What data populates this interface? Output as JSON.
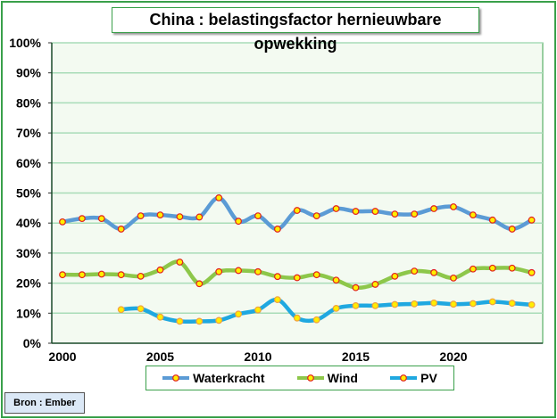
{
  "chart_data": {
    "type": "line",
    "title": "China : belastingsfactor hernieuwbare opwekking",
    "xlabel": "",
    "ylabel": "",
    "xlim": [
      2000,
      2024
    ],
    "ylim": [
      0,
      100
    ],
    "x_ticks": [
      "2000",
      "2005",
      "2010",
      "2015",
      "2020"
    ],
    "y_ticks": [
      "0%",
      "10%",
      "20%",
      "30%",
      "40%",
      "50%",
      "60%",
      "70%",
      "80%",
      "90%",
      "100%"
    ],
    "x": [
      2000,
      2001,
      2002,
      2003,
      2004,
      2005,
      2006,
      2007,
      2008,
      2009,
      2010,
      2011,
      2012,
      2013,
      2014,
      2015,
      2016,
      2017,
      2018,
      2019,
      2020,
      2021,
      2022,
      2023,
      2024
    ],
    "series": [
      {
        "name": "Waterkracht",
        "color": "#5b9bd5",
        "values": [
          40.4,
          41.5,
          41.5,
          38,
          42.4,
          42.7,
          42.1,
          42,
          48.4,
          40.6,
          42.4,
          38,
          44.2,
          42.4,
          44.8,
          43.9,
          43.9,
          43,
          43,
          44.8,
          45.4,
          42.7,
          41,
          38,
          41
        ]
      },
      {
        "name": "Wind",
        "color": "#8dc74a",
        "values": [
          22.8,
          22.8,
          23,
          22.8,
          22.3,
          24.4,
          27,
          19.8,
          23.8,
          24.2,
          23.8,
          22.2,
          21.8,
          22.8,
          21,
          18.5,
          19.6,
          22.3,
          24,
          23.5,
          21.7,
          24.7,
          25,
          25,
          23.5
        ]
      },
      {
        "name": "PV",
        "color": "#1fa8e0",
        "values": [
          null,
          null,
          null,
          11.2,
          11.5,
          8.7,
          7.3,
          7.3,
          7.6,
          9.7,
          11.1,
          14.5,
          8.4,
          7.8,
          11.6,
          12.5,
          12.5,
          12.9,
          13.1,
          13.4,
          13.0,
          13.2,
          13.8,
          13.3,
          12.8
        ]
      }
    ],
    "grid": true,
    "legend": "bottom"
  },
  "source": "Bron : Ember"
}
